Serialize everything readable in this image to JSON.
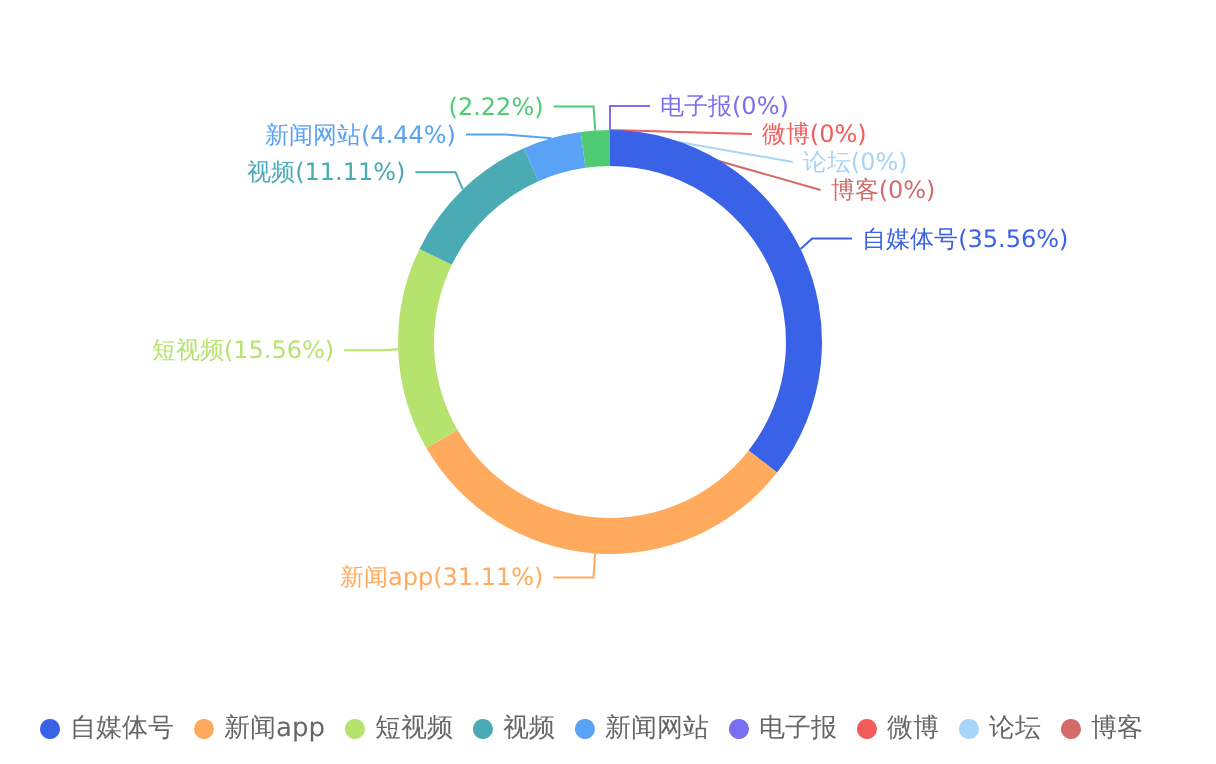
{
  "chart_data": {
    "type": "donut",
    "categories": [
      "自媒体号",
      "新闻app",
      "短视频",
      "视频",
      "新闻网站",
      null,
      "电子报",
      "微博",
      "论坛",
      "博客"
    ],
    "values": [
      35.56,
      31.11,
      15.56,
      11.11,
      4.44,
      2.22,
      0,
      0,
      0,
      0
    ],
    "value_labels": [
      "(35.56%)",
      "(31.11%)",
      "(15.56%)",
      "(11.11%)",
      "(4.44%)",
      "(2.22%)",
      "(0%)",
      "(0%)",
      "(0%)",
      "(0%)"
    ],
    "colors": [
      "#3a62e6",
      "#ffaa5c",
      "#b6e36e",
      "#4aabb5",
      "#5aa2f5",
      "#4ecb73",
      "#7a6ff0",
      "#f25c5c",
      "#a7d4f7",
      "#d46b6b"
    ],
    "legend": "bottom"
  }
}
